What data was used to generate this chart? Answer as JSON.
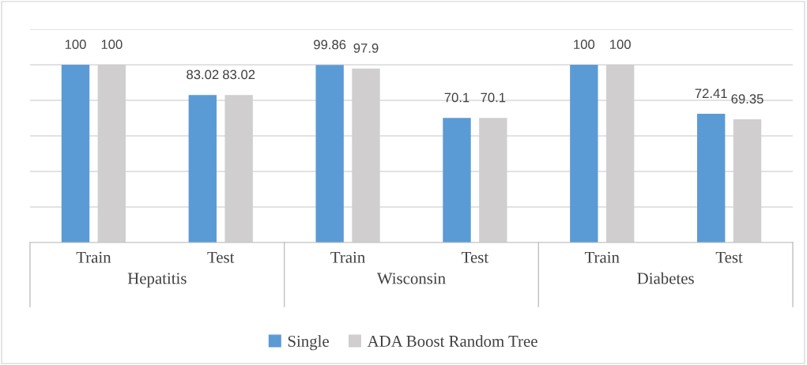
{
  "chart_data": {
    "type": "bar",
    "categories": [
      "Train",
      "Test",
      "Train",
      "Test",
      "Train",
      "Test"
    ],
    "series": [
      {
        "name": "Single",
        "color": "#5b9bd5",
        "values": [
          100,
          83.02,
          99.86,
          70.1,
          100,
          72.41
        ]
      },
      {
        "name": "ADA Boost Random Tree",
        "color": "#d0cece",
        "values": [
          100,
          83.02,
          97.9,
          70.1,
          100,
          69.35
        ]
      }
    ],
    "annotations": [
      "Hepatitis",
      "Wisconsin",
      "Diabetes"
    ],
    "ylim": [
      0,
      120
    ],
    "yticks": [
      0,
      20,
      40,
      60,
      80,
      100,
      120
    ],
    "tick_labels": "x",
    "grid": "y",
    "data_labels": true,
    "legend": "bottom"
  }
}
